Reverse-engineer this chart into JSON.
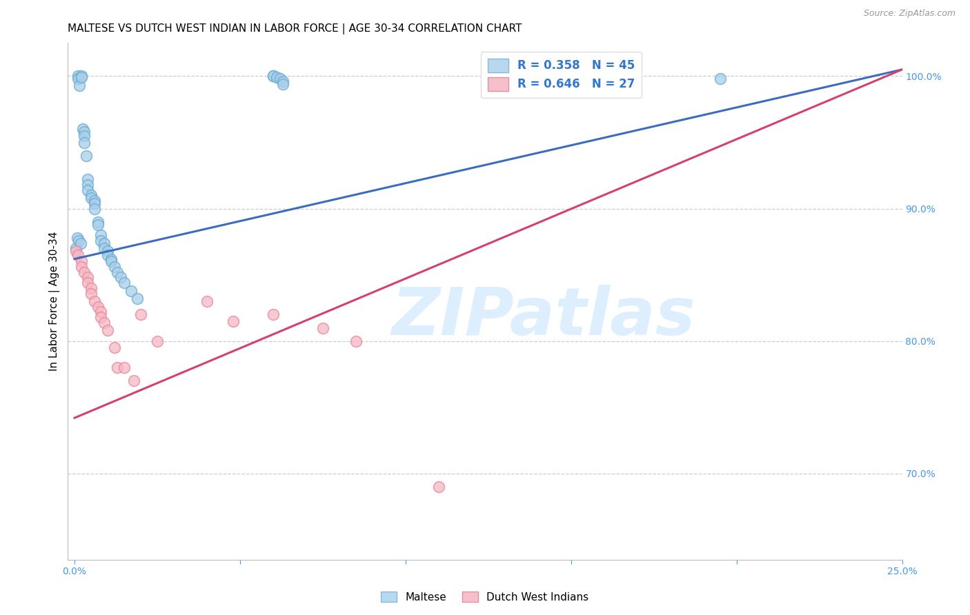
{
  "title": "MALTESE VS DUTCH WEST INDIAN IN LABOR FORCE | AGE 30-34 CORRELATION CHART",
  "source": "Source: ZipAtlas.com",
  "ylabel": "In Labor Force | Age 30-34",
  "xlim": [
    -0.002,
    0.25
  ],
  "ylim": [
    0.635,
    1.025
  ],
  "ytick_positions": [
    0.7,
    0.8,
    0.9,
    1.0
  ],
  "ytick_labels": [
    "70.0%",
    "80.0%",
    "90.0%",
    "100.0%"
  ],
  "xtick_positions": [
    0.0,
    0.05,
    0.1,
    0.15,
    0.2,
    0.25
  ],
  "xtick_labels": [
    "0.0%",
    "",
    "",
    "",
    "",
    "25.0%"
  ],
  "blue_color": "#a8cfe8",
  "blue_edge_color": "#6aaad4",
  "pink_color": "#f5b8c4",
  "pink_edge_color": "#e8879a",
  "blue_line_color": "#3a6dbf",
  "pink_line_color": "#d44070",
  "watermark_text": "ZIPatlas",
  "watermark_color": "#ddeeff",
  "legend_r_blue": "R = 0.358",
  "legend_n_blue": "N = 45",
  "legend_r_pink": "R = 0.646",
  "legend_n_pink": "N = 27",
  "blue_line_x0": 0.0,
  "blue_line_y0": 0.862,
  "blue_line_x1": 0.25,
  "blue_line_y1": 1.005,
  "pink_line_x0": 0.0,
  "pink_line_y0": 0.742,
  "pink_line_x1": 0.25,
  "pink_line_y1": 1.005,
  "blue_scatter_x": [
    0.0005,
    0.001,
    0.001,
    0.0015,
    0.002,
    0.002,
    0.0025,
    0.003,
    0.003,
    0.003,
    0.0035,
    0.004,
    0.004,
    0.004,
    0.005,
    0.005,
    0.006,
    0.006,
    0.006,
    0.007,
    0.007,
    0.008,
    0.008,
    0.009,
    0.009,
    0.01,
    0.01,
    0.011,
    0.011,
    0.012,
    0.013,
    0.014,
    0.015,
    0.017,
    0.019,
    0.06,
    0.06,
    0.061,
    0.062,
    0.063,
    0.063,
    0.195,
    0.0008,
    0.0012,
    0.0018
  ],
  "blue_scatter_y": [
    0.87,
    1.0,
    0.998,
    0.993,
    1.0,
    0.999,
    0.96,
    0.958,
    0.955,
    0.95,
    0.94,
    0.922,
    0.918,
    0.914,
    0.91,
    0.908,
    0.906,
    0.904,
    0.9,
    0.89,
    0.888,
    0.88,
    0.876,
    0.874,
    0.87,
    0.868,
    0.865,
    0.862,
    0.86,
    0.856,
    0.852,
    0.848,
    0.844,
    0.838,
    0.832,
    1.0,
    1.0,
    0.999,
    0.998,
    0.996,
    0.994,
    0.998,
    0.878,
    0.876,
    0.874
  ],
  "pink_scatter_x": [
    0.0005,
    0.001,
    0.002,
    0.002,
    0.003,
    0.004,
    0.004,
    0.005,
    0.005,
    0.006,
    0.007,
    0.008,
    0.008,
    0.009,
    0.01,
    0.012,
    0.013,
    0.015,
    0.018,
    0.02,
    0.025,
    0.04,
    0.048,
    0.06,
    0.075,
    0.085,
    0.11
  ],
  "pink_scatter_y": [
    0.868,
    0.865,
    0.86,
    0.856,
    0.852,
    0.848,
    0.844,
    0.84,
    0.836,
    0.83,
    0.826,
    0.822,
    0.818,
    0.814,
    0.808,
    0.795,
    0.78,
    0.78,
    0.77,
    0.82,
    0.8,
    0.83,
    0.815,
    0.82,
    0.81,
    0.8,
    0.69
  ],
  "title_fontsize": 11,
  "label_fontsize": 11,
  "tick_fontsize": 10,
  "legend_fontsize": 12,
  "source_fontsize": 9
}
